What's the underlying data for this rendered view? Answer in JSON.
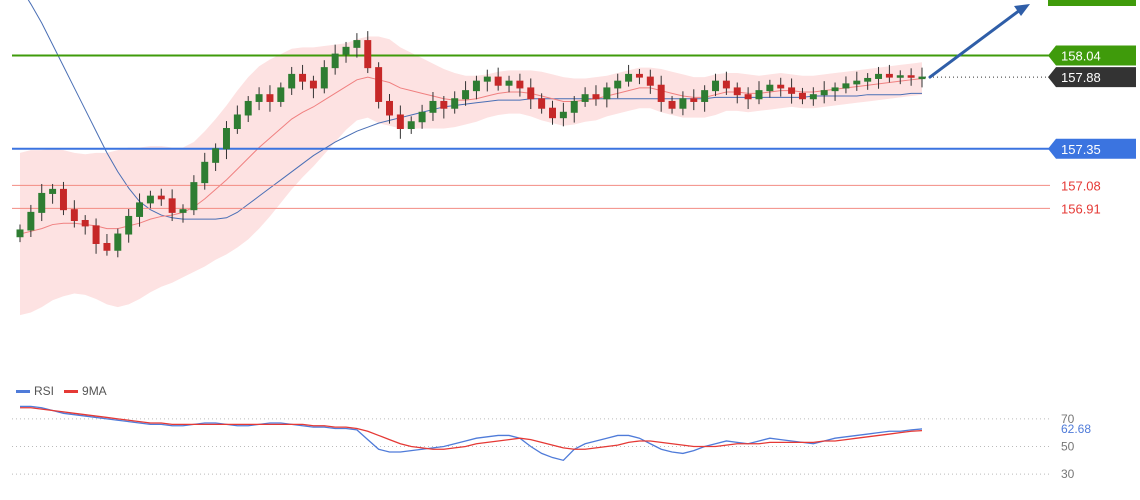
{
  "chart_data": [
    {
      "type": "candlestick",
      "ylim": [
        155.7,
        158.45
      ],
      "grid": false,
      "colors": {
        "up": "#2e7d32",
        "down": "#c62828",
        "bollinger_fill": "#fde2e2",
        "ma_fast": "#f08080",
        "ma_slow": "#4a6fb5",
        "resistance": "#3f9b0b",
        "support": "#3b74e0",
        "pivot": "#f28b82",
        "price_tag": "#333333",
        "trend_arrow": "#2f5ea8"
      },
      "levels": [
        {
          "name": "resistance",
          "value": 158.04,
          "label": "158.04"
        },
        {
          "name": "last-price",
          "value": 157.88,
          "label": "157.88"
        },
        {
          "name": "support",
          "value": 157.35,
          "label": "157.35"
        },
        {
          "name": "pivot-1",
          "value": 157.08,
          "label": "157.08"
        },
        {
          "name": "pivot-2",
          "value": 156.91,
          "label": "156.91"
        }
      ],
      "close": [
        156.75,
        156.88,
        157.02,
        157.05,
        156.9,
        156.82,
        156.78,
        156.65,
        156.6,
        156.72,
        156.85,
        156.95,
        157.0,
        156.98,
        156.88,
        156.9,
        157.1,
        157.25,
        157.35,
        157.5,
        157.6,
        157.7,
        157.75,
        157.7,
        157.8,
        157.9,
        157.85,
        157.8,
        157.95,
        158.05,
        158.1,
        158.15,
        157.95,
        157.7,
        157.6,
        157.5,
        157.55,
        157.62,
        157.7,
        157.65,
        157.72,
        157.78,
        157.85,
        157.88,
        157.82,
        157.85,
        157.8,
        157.72,
        157.65,
        157.58,
        157.62,
        157.7,
        157.75,
        157.72,
        157.8,
        157.85,
        157.9,
        157.88,
        157.82,
        157.7,
        157.65,
        157.72,
        157.7,
        157.78,
        157.85,
        157.8,
        157.75,
        157.72,
        157.78,
        157.82,
        157.8,
        157.76,
        157.72,
        157.75,
        157.78,
        157.8,
        157.83,
        157.85,
        157.87,
        157.9,
        157.88,
        157.89,
        157.88,
        157.88
      ],
      "bb_mid": [
        156.72,
        156.74,
        156.76,
        156.79,
        156.8,
        156.8,
        156.79,
        156.78,
        156.76,
        156.76,
        156.78,
        156.8,
        156.83,
        156.85,
        156.86,
        156.88,
        156.92,
        156.98,
        157.05,
        157.12,
        157.2,
        157.28,
        157.36,
        157.43,
        157.5,
        157.57,
        157.62,
        157.66,
        157.71,
        157.76,
        157.81,
        157.86,
        157.88,
        157.86,
        157.84,
        157.8,
        157.78,
        157.76,
        157.74,
        157.72,
        157.71,
        157.71,
        157.72,
        157.74,
        157.76,
        157.77,
        157.77,
        157.76,
        157.74,
        157.72,
        157.7,
        157.7,
        157.71,
        157.72,
        157.74,
        157.76,
        157.78,
        157.8,
        157.8,
        157.78,
        157.76,
        157.74,
        157.73,
        157.73,
        157.75,
        157.77,
        157.77,
        157.76,
        157.76,
        157.77,
        157.78,
        157.78,
        157.77,
        157.77,
        157.78,
        157.79,
        157.8,
        157.81,
        157.82,
        157.83,
        157.84,
        157.85,
        157.86,
        157.87
      ],
      "bb_width": [
        0.6,
        0.6,
        0.58,
        0.56,
        0.54,
        0.52,
        0.52,
        0.54,
        0.56,
        0.58,
        0.58,
        0.56,
        0.54,
        0.52,
        0.5,
        0.48,
        0.48,
        0.5,
        0.52,
        0.55,
        0.58,
        0.6,
        0.6,
        0.58,
        0.55,
        0.52,
        0.48,
        0.44,
        0.4,
        0.36,
        0.32,
        0.3,
        0.3,
        0.32,
        0.32,
        0.3,
        0.28,
        0.26,
        0.24,
        0.22,
        0.2,
        0.18,
        0.17,
        0.16,
        0.16,
        0.16,
        0.16,
        0.17,
        0.18,
        0.18,
        0.18,
        0.17,
        0.16,
        0.16,
        0.15,
        0.15,
        0.15,
        0.15,
        0.15,
        0.16,
        0.16,
        0.16,
        0.15,
        0.15,
        0.15,
        0.14,
        0.14,
        0.14,
        0.13,
        0.13,
        0.13,
        0.12,
        0.12,
        0.12,
        0.12,
        0.12,
        0.12,
        0.12,
        0.12,
        0.12,
        0.12,
        0.12,
        0.12,
        0.12
      ],
      "ma_slow": [
        158.55,
        158.42,
        158.28,
        158.12,
        157.96,
        157.8,
        157.64,
        157.48,
        157.32,
        157.18,
        157.06,
        156.96,
        156.9,
        156.86,
        156.84,
        156.83,
        156.83,
        156.83,
        156.83,
        156.84,
        156.88,
        156.94,
        157.0,
        157.06,
        157.12,
        157.18,
        157.24,
        157.3,
        157.35,
        157.4,
        157.44,
        157.48,
        157.51,
        157.54,
        157.56,
        157.58,
        157.6,
        157.62,
        157.64,
        157.66,
        157.67,
        157.68,
        157.69,
        157.7,
        157.71,
        157.71,
        157.71,
        157.72,
        157.72,
        157.72,
        157.72,
        157.72,
        157.72,
        157.72,
        157.72,
        157.72,
        157.72,
        157.72,
        157.72,
        157.72,
        157.72,
        157.72,
        157.72,
        157.72,
        157.73,
        157.73,
        157.73,
        157.73,
        157.73,
        157.73,
        157.73,
        157.73,
        157.73,
        157.74,
        157.74,
        157.74,
        157.74,
        157.74,
        157.75,
        157.75,
        157.75,
        157.75,
        157.76,
        157.76
      ]
    },
    {
      "type": "line",
      "ylim": [
        20,
        80
      ],
      "ticks": [
        70,
        50,
        30
      ],
      "current_label": "62.68",
      "legend": [
        {
          "name": "RSI",
          "color": "#4f7bd9"
        },
        {
          "name": "9MA",
          "color": "#e53935"
        }
      ],
      "series": [
        {
          "name": "RSI",
          "values": [
            79,
            79,
            78,
            76,
            74,
            73,
            72,
            71,
            70,
            69,
            68,
            67,
            66,
            66,
            65,
            65,
            66,
            67,
            67,
            66,
            65,
            65,
            66,
            67,
            67,
            66,
            65,
            64,
            64,
            63,
            63,
            62,
            55,
            48,
            46,
            46,
            47,
            48,
            49,
            50,
            52,
            54,
            56,
            57,
            58,
            58,
            56,
            50,
            45,
            42,
            40,
            48,
            52,
            54,
            56,
            58,
            58,
            56,
            52,
            48,
            46,
            45,
            47,
            50,
            52,
            54,
            53,
            52,
            54,
            56,
            55,
            54,
            53,
            52,
            54,
            56,
            57,
            58,
            59,
            60,
            61,
            61,
            62,
            62.68
          ]
        },
        {
          "name": "9MA",
          "values": [
            78,
            78,
            77,
            76,
            75,
            74,
            73,
            72,
            71,
            70,
            69,
            68,
            67,
            67,
            66,
            66,
            66,
            66,
            66,
            66,
            66,
            66,
            66,
            66,
            66,
            66,
            66,
            65,
            65,
            64,
            64,
            63,
            61,
            58,
            55,
            52,
            50,
            49,
            48,
            48,
            49,
            50,
            52,
            53,
            54,
            55,
            56,
            55,
            53,
            51,
            49,
            48,
            48,
            49,
            50,
            51,
            53,
            54,
            54,
            53,
            52,
            51,
            50,
            50,
            50,
            51,
            52,
            52,
            52,
            53,
            53,
            53,
            53,
            53,
            54,
            54,
            55,
            56,
            57,
            58,
            59,
            60,
            61,
            61.5
          ]
        }
      ]
    }
  ]
}
